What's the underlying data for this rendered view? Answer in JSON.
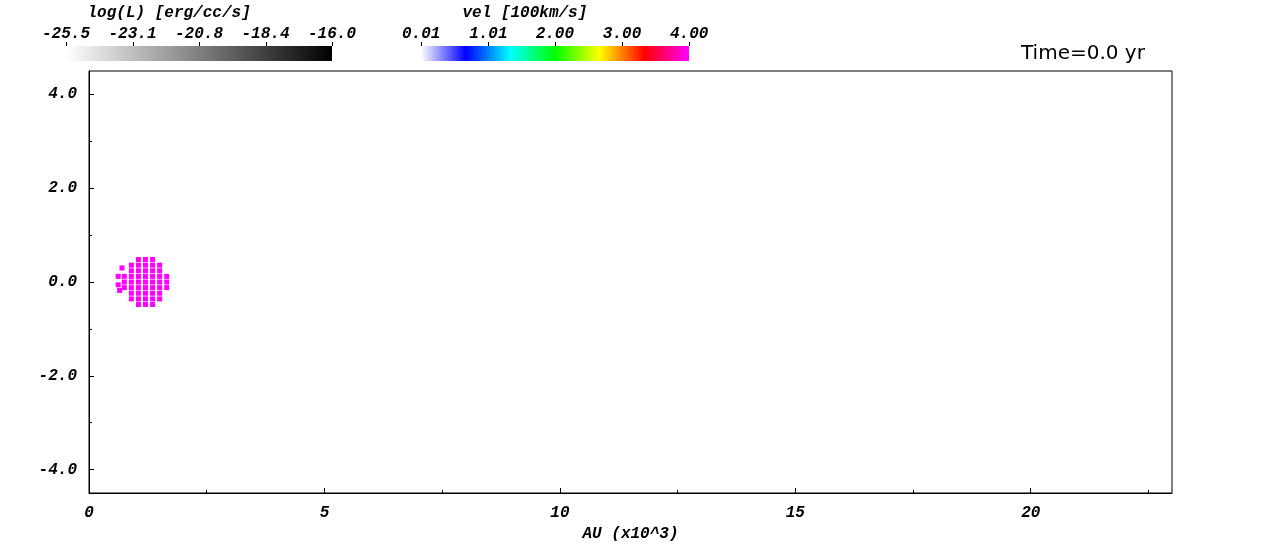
{
  "chart_data": {
    "type": "scatter",
    "xlabel": "AU (x10^3)",
    "annotations": [
      "Time=0.0 yr",
      "log(L) [erg/cc/s]",
      "-25.5",
      "-23.1",
      "-20.8",
      "-18.4",
      "-16.0"
    ],
    "clabel": "vel [100km/s]",
    "clim": [
      0.01,
      4.0
    ],
    "cticks": [
      {
        "value": 0.01,
        "label": "0.01"
      },
      {
        "value": 1.01,
        "label": "1.01"
      },
      {
        "value": 2.0,
        "label": "2.00"
      },
      {
        "value": 3.0,
        "label": "3.00"
      },
      {
        "value": 4.0,
        "label": "4.00"
      }
    ],
    "xlim": [
      0,
      23
    ],
    "xticks": [
      0,
      5,
      10,
      15,
      20
    ],
    "ylim": [
      -4.5,
      4.5
    ],
    "yticks": [
      {
        "value": -4,
        "label": "-4.0"
      },
      {
        "value": -2,
        "label": "-2.0"
      },
      {
        "value": 0,
        "label": "0.0"
      },
      {
        "value": 2,
        "label": "2.0"
      },
      {
        "value": 4,
        "label": "4.0"
      }
    ],
    "marker": "square",
    "series": [
      {
        "x": [
          0.75,
          0.75,
          0.75,
          0.9,
          0.9,
          0.9,
          0.9,
          0.9,
          0.9,
          0.9,
          1.05,
          1.05,
          1.05,
          1.05,
          1.05,
          1.05,
          1.05,
          1.05,
          1.05,
          1.2,
          1.2,
          1.2,
          1.2,
          1.2,
          1.2,
          1.2,
          1.2,
          1.2,
          1.35,
          1.35,
          1.35,
          1.35,
          1.35,
          1.35,
          1.35,
          1.35,
          1.35,
          1.5,
          1.5,
          1.5,
          1.5,
          1.5,
          1.5,
          1.5,
          1.65,
          1.65,
          1.65,
          0.62,
          0.62,
          0.65,
          0.7
        ],
        "values": [
          -0.12,
          0,
          0.12,
          -0.36,
          -0.24,
          -0.12,
          0,
          0.12,
          0.24,
          0.36,
          -0.48,
          -0.36,
          -0.24,
          -0.12,
          0,
          0.12,
          0.24,
          0.36,
          0.48,
          -0.48,
          -0.36,
          -0.24,
          -0.12,
          0,
          0.12,
          0.24,
          0.36,
          0.48,
          -0.48,
          -0.36,
          -0.24,
          -0.12,
          0,
          0.12,
          0.24,
          0.36,
          0.48,
          -0.36,
          -0.24,
          -0.12,
          0,
          0.12,
          0.24,
          0.36,
          -0.12,
          0,
          0.12,
          0.12,
          -0.06,
          -0.18,
          0.3
        ],
        "cvalues": [
          4,
          4,
          4,
          4,
          4,
          4,
          4,
          4,
          4,
          4,
          4,
          4,
          4,
          4,
          4,
          4,
          4,
          4,
          4,
          4,
          4,
          4,
          4,
          4,
          4,
          4,
          4,
          4,
          4,
          4,
          4,
          4,
          4,
          4,
          4,
          4,
          4,
          4,
          4,
          4,
          4,
          4,
          4,
          4,
          4,
          4,
          4,
          4,
          4,
          4,
          4
        ]
      }
    ]
  }
}
